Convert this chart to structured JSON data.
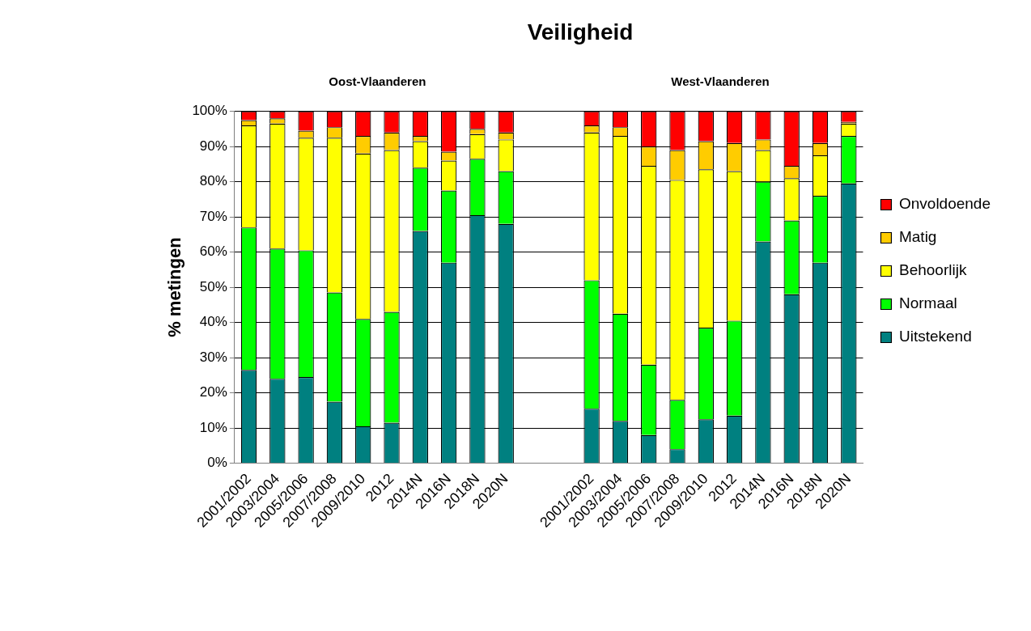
{
  "chart_data": {
    "type": "bar",
    "title": "Veiligheid",
    "ylabel": "% metingen",
    "stacked": true,
    "annotations": [
      "Oost-Vlaanderen",
      "West-Vlaanderen"
    ],
    "categories": [
      "2001/2002",
      "2003/2004",
      "2005/2006",
      "2007/2008",
      "2009/2010",
      "2012",
      "2014N",
      "2016N",
      "2018N",
      "2020N",
      null,
      null,
      "2001/2002",
      "2003/2004",
      "2005/2006",
      "2007/2008",
      "2009/2010",
      "2012",
      "2014N",
      "2016N",
      "2018N",
      "2020N"
    ],
    "series": [
      {
        "name": "Uitstekend",
        "color": "#008080",
        "values": [
          26.5,
          24,
          24.5,
          17.5,
          10.5,
          11.5,
          66,
          57,
          70.5,
          68,
          null,
          null,
          15.5,
          12,
          8,
          4,
          12.5,
          13.5,
          63,
          48,
          57,
          79.5
        ]
      },
      {
        "name": "Normaal",
        "color": "#00ff00",
        "values": [
          40.5,
          37,
          36,
          31,
          30.5,
          31.5,
          18,
          20.5,
          16,
          15,
          null,
          null,
          36.5,
          30.5,
          20,
          14,
          26,
          27,
          17,
          21,
          19,
          13.5
        ]
      },
      {
        "name": "Behoorlijk",
        "color": "#ffff00",
        "values": [
          29,
          35.5,
          32,
          44,
          47,
          46,
          7.5,
          8.5,
          7,
          9,
          null,
          null,
          42,
          50.5,
          56.5,
          62.5,
          45,
          42.5,
          9,
          12,
          11.5,
          3.5
        ]
      },
      {
        "name": "Matig",
        "color": "#ffcc00",
        "values": [
          1.5,
          1.5,
          2,
          3,
          5,
          5,
          1.5,
          2.5,
          1.5,
          2,
          null,
          null,
          2,
          2.5,
          5.5,
          8.5,
          8,
          8,
          3,
          3.5,
          3.5,
          0.5
        ]
      },
      {
        "name": "Onvoldoende",
        "color": "#ff0000",
        "values": [
          2.5,
          2,
          5.5,
          4.5,
          7,
          6,
          7,
          11.5,
          5,
          6,
          null,
          null,
          4,
          4.5,
          10,
          11,
          8.5,
          9,
          8,
          15.5,
          9,
          3
        ]
      }
    ],
    "ylim": [
      0,
      100
    ],
    "yticks": [
      {
        "value": 0,
        "label": "0%"
      },
      {
        "value": 10,
        "label": "10%"
      },
      {
        "value": 20,
        "label": "20%"
      },
      {
        "value": 30,
        "label": "30%"
      },
      {
        "value": 40,
        "label": "40%"
      },
      {
        "value": 50,
        "label": "50%"
      },
      {
        "value": 60,
        "label": "60%"
      },
      {
        "value": 70,
        "label": "70%"
      },
      {
        "value": 80,
        "label": "80%"
      },
      {
        "value": 90,
        "label": "90%"
      },
      {
        "value": 100,
        "label": "100%"
      }
    ],
    "grid": "y",
    "legend": "right"
  }
}
